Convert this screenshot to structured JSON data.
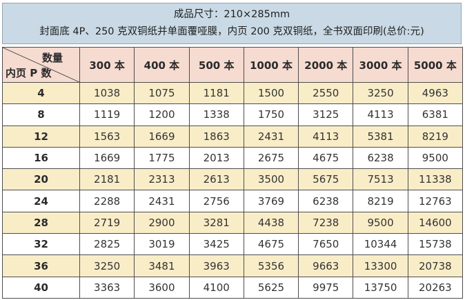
{
  "banner": {
    "line1": "成品尺寸：210×285mm",
    "line2": "封面底 4P、250 克双铜纸并单面覆哑膜，内页 200 克双铜纸，全书双面印刷(总价:元)"
  },
  "table": {
    "corner": {
      "top_label": "数量",
      "bottom_label": "内页 P 数"
    },
    "columns": [
      "300 本",
      "400 本",
      "500 本",
      "1000 本",
      "2000 本",
      "3000 本",
      "5000 本"
    ],
    "rows": [
      {
        "pages": "4",
        "prices": [
          "1038",
          "1075",
          "1181",
          "1500",
          "2550",
          "3250",
          "4963"
        ]
      },
      {
        "pages": "8",
        "prices": [
          "1119",
          "1200",
          "1338",
          "1750",
          "3125",
          "4113",
          "6381"
        ]
      },
      {
        "pages": "12",
        "prices": [
          "1563",
          "1669",
          "1863",
          "2431",
          "4113",
          "5381",
          "8219"
        ]
      },
      {
        "pages": "16",
        "prices": [
          "1669",
          "1775",
          "2013",
          "2675",
          "4675",
          "6238",
          "9500"
        ]
      },
      {
        "pages": "20",
        "prices": [
          "2181",
          "2313",
          "2613",
          "3500",
          "5675",
          "7513",
          "11338"
        ]
      },
      {
        "pages": "24",
        "prices": [
          "2288",
          "2431",
          "2756",
          "3769",
          "6238",
          "8219",
          "12763"
        ]
      },
      {
        "pages": "28",
        "prices": [
          "2719",
          "2900",
          "3281",
          "4438",
          "7238",
          "9500",
          "14600"
        ]
      },
      {
        "pages": "32",
        "prices": [
          "2825",
          "3019",
          "3425",
          "4675",
          "7650",
          "10344",
          "15738"
        ]
      },
      {
        "pages": "36",
        "prices": [
          "3250",
          "3481",
          "3963",
          "5356",
          "9663",
          "13300",
          "20738"
        ]
      },
      {
        "pages": "40",
        "prices": [
          "3363",
          "3600",
          "4100",
          "5625",
          "9975",
          "13750",
          "20263"
        ]
      }
    ]
  },
  "colors": {
    "banner_bg": "#c9dae6",
    "banner_border": "#94a3ad",
    "header_bg": "#f6dbd1",
    "row_odd_bg": "#f9edc8",
    "row_even_bg": "#ffffff",
    "grid_line": "#4c4c4c"
  }
}
